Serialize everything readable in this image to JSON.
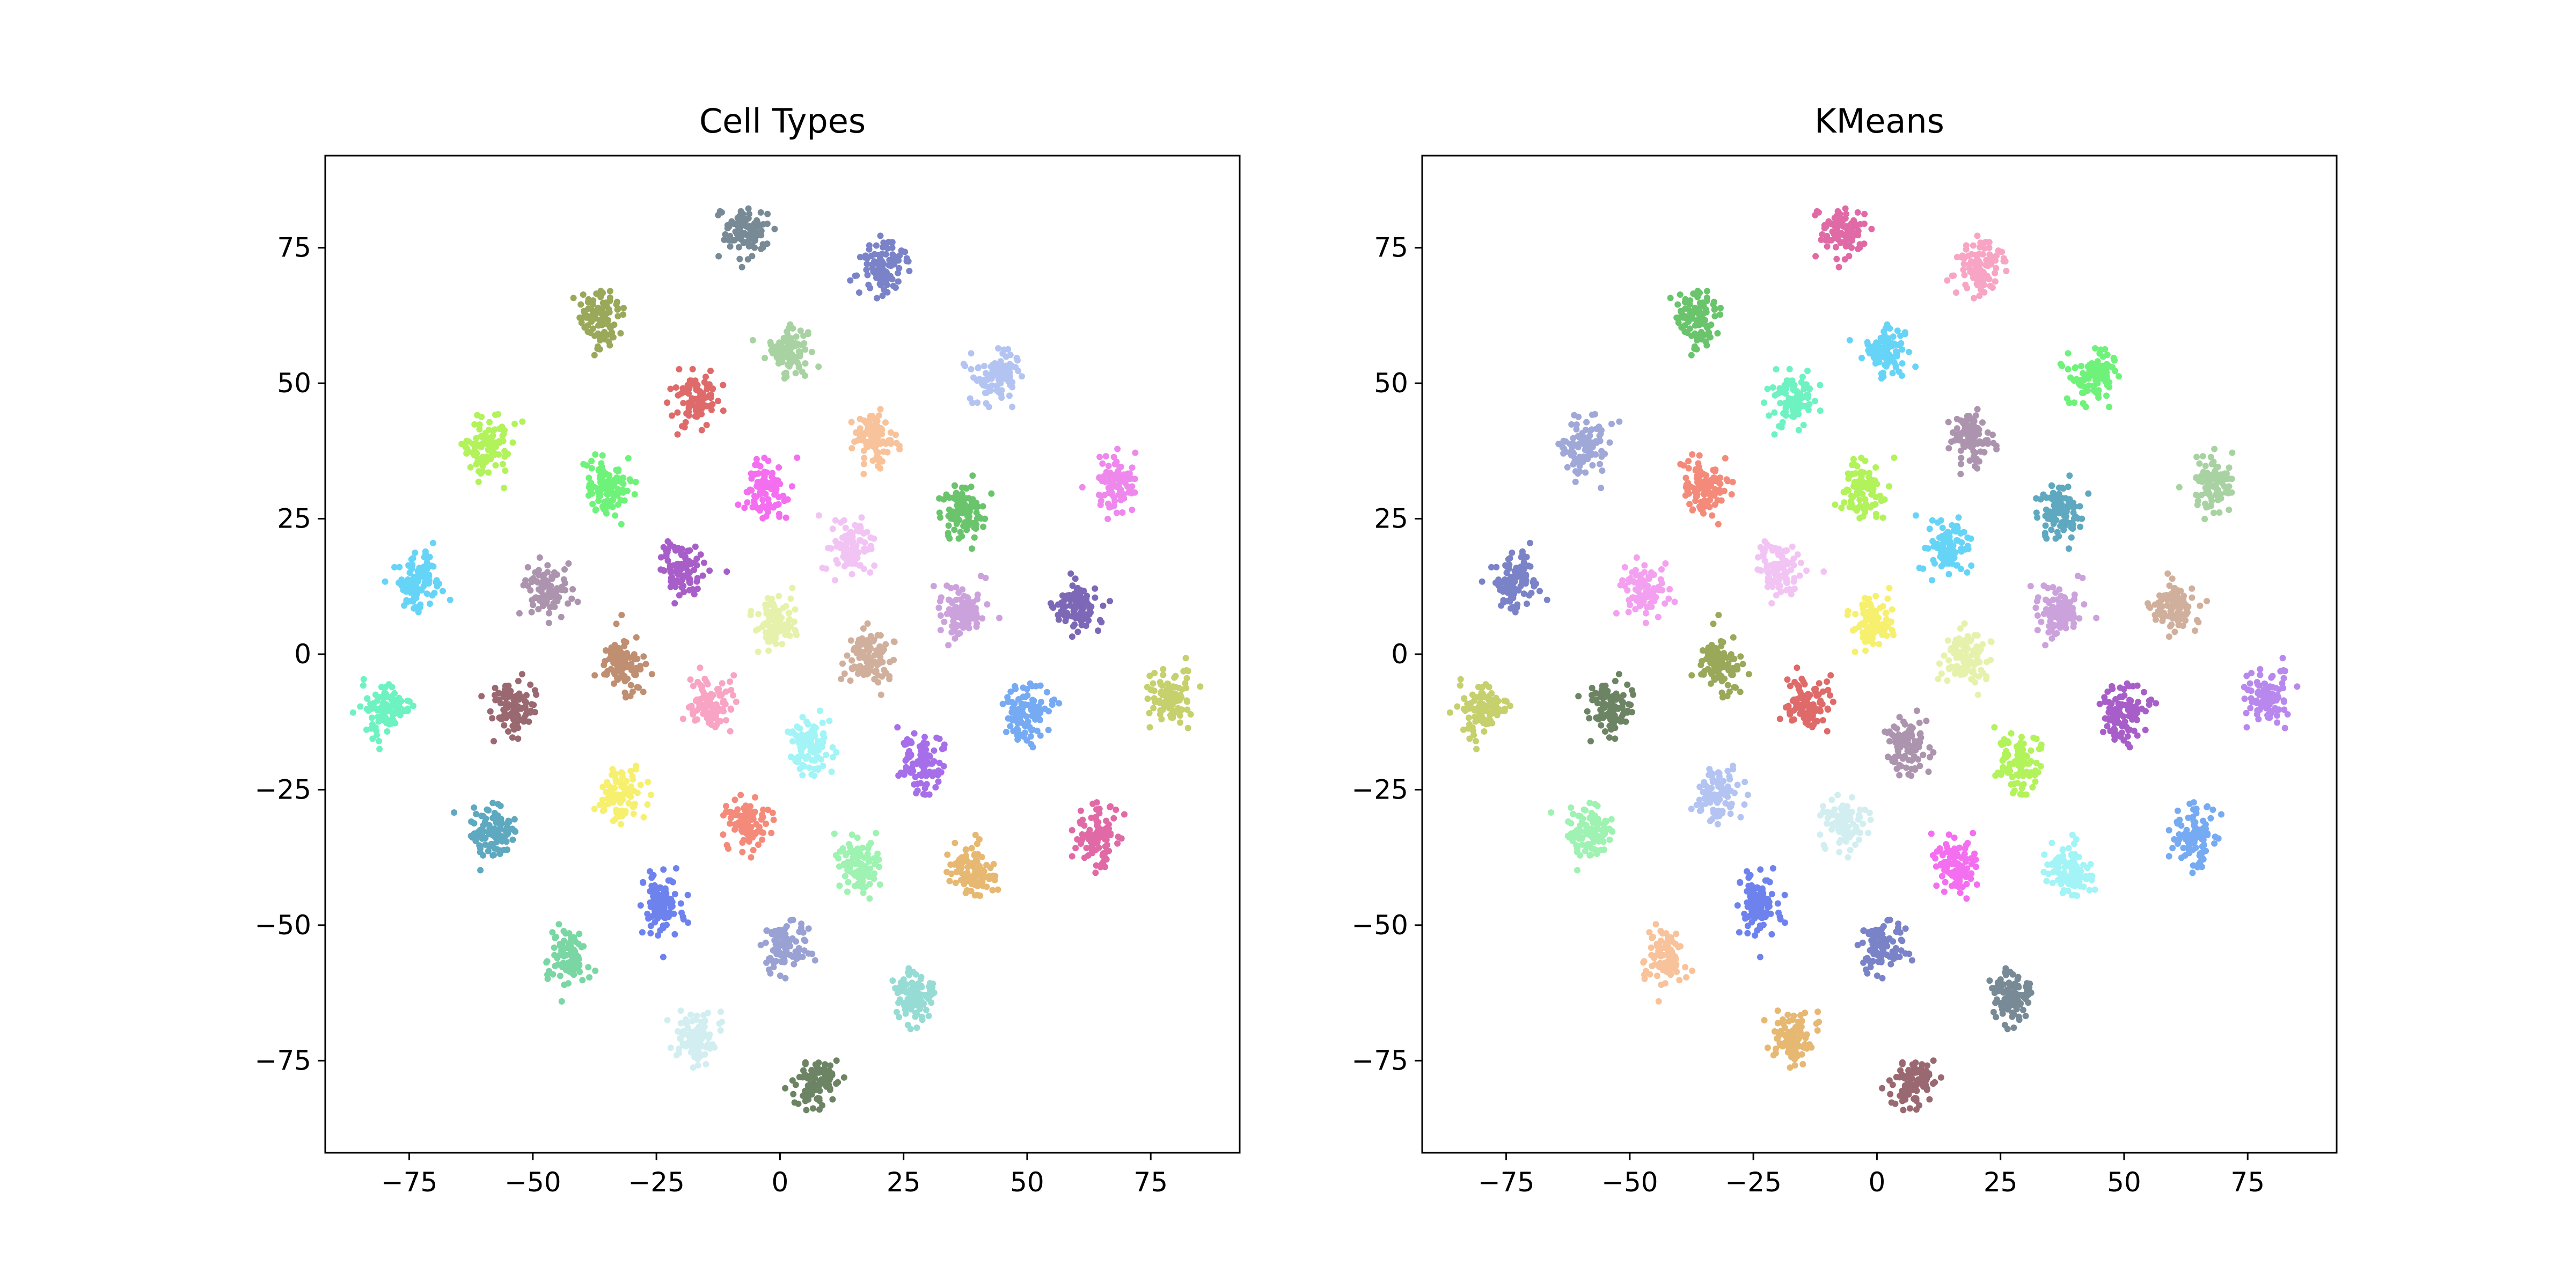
{
  "chart_data": [
    {
      "type": "scatter",
      "title": "Cell Types",
      "xlabel": "",
      "ylabel": "",
      "xlim": [
        -92,
        93
      ],
      "ylim": [
        -92,
        92
      ],
      "xticks": [
        -75,
        -50,
        -25,
        0,
        25,
        50,
        75
      ],
      "yticks": [
        -75,
        -50,
        -25,
        0,
        25,
        50,
        75
      ],
      "xtick_labels": [
        "−75",
        "−50",
        "−25",
        "0",
        "25",
        "50",
        "75"
      ],
      "ytick_labels": [
        "−75",
        "−50",
        "−25",
        "0",
        "25",
        "50",
        "75"
      ],
      "grid": false,
      "legend": "none",
      "clusters": [
        {
          "x": -7,
          "y": 78,
          "color": "#778a96"
        },
        {
          "x": 20,
          "y": 71,
          "color": "#7a82c8"
        },
        {
          "x": -36,
          "y": 62,
          "color": "#9aa85a"
        },
        {
          "x": 2,
          "y": 56,
          "color": "#a8d2a2"
        },
        {
          "x": 44,
          "y": 51,
          "color": "#b4c4f2"
        },
        {
          "x": -17,
          "y": 47,
          "color": "#de6a6a"
        },
        {
          "x": 19,
          "y": 40,
          "color": "#f8c29a"
        },
        {
          "x": -59,
          "y": 38,
          "color": "#b2f25a"
        },
        {
          "x": -35,
          "y": 31,
          "color": "#6ef27a"
        },
        {
          "x": -3,
          "y": 30,
          "color": "#f46ef0"
        },
        {
          "x": 68,
          "y": 32,
          "color": "#ee88ec"
        },
        {
          "x": 37,
          "y": 27,
          "color": "#6ac46c"
        },
        {
          "x": 14,
          "y": 19,
          "color": "#f2c4f4"
        },
        {
          "x": -20,
          "y": 16,
          "color": "#a85ec8"
        },
        {
          "x": -47,
          "y": 12,
          "color": "#ac94ae"
        },
        {
          "x": -73,
          "y": 13,
          "color": "#66d4f6"
        },
        {
          "x": 37,
          "y": 8,
          "color": "#cca2dc"
        },
        {
          "x": 60,
          "y": 9,
          "color": "#7c68b6"
        },
        {
          "x": -1,
          "y": 6,
          "color": "#e6f2ac"
        },
        {
          "x": -32,
          "y": -2,
          "color": "#c08e70"
        },
        {
          "x": 18,
          "y": -1,
          "color": "#d0b09c"
        },
        {
          "x": -80,
          "y": -10,
          "color": "#6ef2c2"
        },
        {
          "x": -54,
          "y": -10,
          "color": "#9a6870"
        },
        {
          "x": -14,
          "y": -9,
          "color": "#f8a4c4"
        },
        {
          "x": 79,
          "y": -8,
          "color": "#c6d06c"
        },
        {
          "x": 50,
          "y": -11,
          "color": "#76aaf2"
        },
        {
          "x": 6,
          "y": -17,
          "color": "#a2f4f6"
        },
        {
          "x": 29,
          "y": -20,
          "color": "#a66ee8"
        },
        {
          "x": -32,
          "y": -26,
          "color": "#f6f06e"
        },
        {
          "x": -58,
          "y": -33,
          "color": "#5ea8c0"
        },
        {
          "x": -7,
          "y": -31,
          "color": "#f48a7a"
        },
        {
          "x": 64,
          "y": -34,
          "color": "#e06aa6"
        },
        {
          "x": 16,
          "y": -39,
          "color": "#9ef2b2"
        },
        {
          "x": 39,
          "y": -40,
          "color": "#e6b872"
        },
        {
          "x": -24,
          "y": -46,
          "color": "#6e82ee"
        },
        {
          "x": 1,
          "y": -54,
          "color": "#9aa2d4"
        },
        {
          "x": -43,
          "y": -56,
          "color": "#7ad6a2"
        },
        {
          "x": 27,
          "y": -63,
          "color": "#96dcd4"
        },
        {
          "x": -17,
          "y": -71,
          "color": "#d2eef0"
        },
        {
          "x": 7,
          "y": -79,
          "color": "#6c8464"
        }
      ]
    },
    {
      "type": "scatter",
      "title": "KMeans",
      "xlabel": "",
      "ylabel": "",
      "xlim": [
        -92,
        93
      ],
      "ylim": [
        -92,
        92
      ],
      "xticks": [
        -75,
        -50,
        -25,
        0,
        25,
        50,
        75
      ],
      "yticks": [
        -75,
        -50,
        -25,
        0,
        25,
        50,
        75
      ],
      "xtick_labels": [
        "−75",
        "−50",
        "−25",
        "0",
        "25",
        "50",
        "75"
      ],
      "ytick_labels": [
        "−75",
        "−50",
        "−25",
        "0",
        "25",
        "50",
        "75"
      ],
      "grid": false,
      "legend": "none",
      "clusters": [
        {
          "x": -7,
          "y": 78,
          "color": "#e06aa6"
        },
        {
          "x": 20,
          "y": 71,
          "color": "#f8a4c4"
        },
        {
          "x": -36,
          "y": 62,
          "color": "#6ac46c"
        },
        {
          "x": 2,
          "y": 56,
          "color": "#66d4f6"
        },
        {
          "x": 44,
          "y": 51,
          "color": "#6ef27a"
        },
        {
          "x": -17,
          "y": 47,
          "color": "#6ef2c2"
        },
        {
          "x": 19,
          "y": 40,
          "color": "#ac94ae"
        },
        {
          "x": -59,
          "y": 38,
          "color": "#a0a8d8"
        },
        {
          "x": -35,
          "y": 31,
          "color": "#f48a7a"
        },
        {
          "x": -3,
          "y": 30,
          "color": "#b2f25a"
        },
        {
          "x": 68,
          "y": 32,
          "color": "#a8d2a2"
        },
        {
          "x": 37,
          "y": 27,
          "color": "#5ea8c0"
        },
        {
          "x": 14,
          "y": 19,
          "color": "#66d4f6"
        },
        {
          "x": -20,
          "y": 16,
          "color": "#f2c4f4"
        },
        {
          "x": -47,
          "y": 12,
          "color": "#f4a0f0"
        },
        {
          "x": -73,
          "y": 13,
          "color": "#7a82c8"
        },
        {
          "x": 37,
          "y": 8,
          "color": "#cca2dc"
        },
        {
          "x": 60,
          "y": 9,
          "color": "#d0b09c"
        },
        {
          "x": -1,
          "y": 6,
          "color": "#f6f06e"
        },
        {
          "x": -32,
          "y": -2,
          "color": "#9aa85a"
        },
        {
          "x": 18,
          "y": -1,
          "color": "#e6f2ac"
        },
        {
          "x": -80,
          "y": -10,
          "color": "#c6d06c"
        },
        {
          "x": -54,
          "y": -10,
          "color": "#6c8464"
        },
        {
          "x": -14,
          "y": -9,
          "color": "#de6a6a"
        },
        {
          "x": 79,
          "y": -8,
          "color": "#b888ee"
        },
        {
          "x": 50,
          "y": -11,
          "color": "#a85ec8"
        },
        {
          "x": 6,
          "y": -17,
          "color": "#ac94ae"
        },
        {
          "x": 29,
          "y": -20,
          "color": "#b2f25a"
        },
        {
          "x": -32,
          "y": -26,
          "color": "#b4c4f2"
        },
        {
          "x": -58,
          "y": -33,
          "color": "#9ef2b2"
        },
        {
          "x": -7,
          "y": -31,
          "color": "#d2eef0"
        },
        {
          "x": 64,
          "y": -34,
          "color": "#76aaf2"
        },
        {
          "x": 16,
          "y": -39,
          "color": "#f46ef0"
        },
        {
          "x": 39,
          "y": -40,
          "color": "#a2f4f6"
        },
        {
          "x": -24,
          "y": -46,
          "color": "#6e82ee"
        },
        {
          "x": 1,
          "y": -54,
          "color": "#7a82c8"
        },
        {
          "x": -43,
          "y": -56,
          "color": "#f8c29a"
        },
        {
          "x": 27,
          "y": -63,
          "color": "#778a96"
        },
        {
          "x": -17,
          "y": -71,
          "color": "#e6b872"
        },
        {
          "x": 7,
          "y": -79,
          "color": "#9a6870"
        }
      ]
    }
  ]
}
